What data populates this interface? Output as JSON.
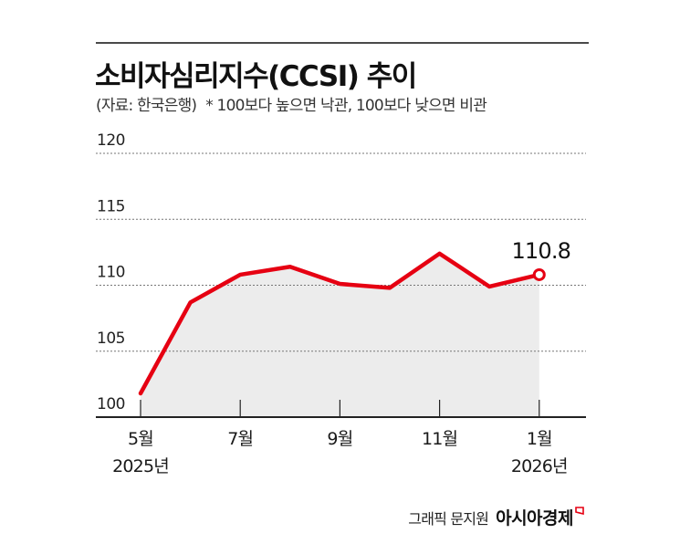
{
  "header": {
    "title": "소비자심리지수(CCSI) 추이",
    "source": "(자료: 한국은행)",
    "note": "* 100보다 높으면 낙관, 100보다 낮으면 비관"
  },
  "footer": {
    "credit": "그래픽 문지원",
    "brand": "아시아경제",
    "brand_logo_icon": "red-flag-outline-icon"
  },
  "colors": {
    "line": "#e60012",
    "fill": "#ececec",
    "grid": "#777777",
    "axis": "#222222"
  },
  "chart_data": {
    "type": "line",
    "title": "소비자심리지수(CCSI) 추이",
    "subtitle": "(자료: 한국은행) * 100보다 높으면 낙관, 100보다 낮으면 비관",
    "xlabel": "",
    "ylabel": "",
    "x": [
      "2025-05",
      "2025-06",
      "2025-07",
      "2025-08",
      "2025-09",
      "2025-10",
      "2025-11",
      "2025-12",
      "2026-01"
    ],
    "series": [
      {
        "name": "소비자심리지수(CCSI)",
        "values": [
          101.8,
          108.7,
          110.8,
          111.4,
          110.1,
          109.8,
          112.4,
          109.9,
          110.8
        ]
      }
    ],
    "ylim": [
      100,
      120
    ],
    "yticks": [
      "100",
      "105",
      "110",
      "115",
      "120"
    ],
    "xticks": [
      {
        "index": 0,
        "line1": "5월",
        "line2": "2025년"
      },
      {
        "index": 2,
        "line1": "7월",
        "line2": ""
      },
      {
        "index": 4,
        "line1": "9월",
        "line2": ""
      },
      {
        "index": 6,
        "line1": "11월",
        "line2": ""
      },
      {
        "index": 8,
        "line1": "1월",
        "line2": "2026년"
      }
    ],
    "annotations": [
      {
        "index": 8,
        "text": "110.8",
        "marker": "open-circle"
      }
    ],
    "grid": "horizontal dotted",
    "legend": "none",
    "area_fill": true
  }
}
